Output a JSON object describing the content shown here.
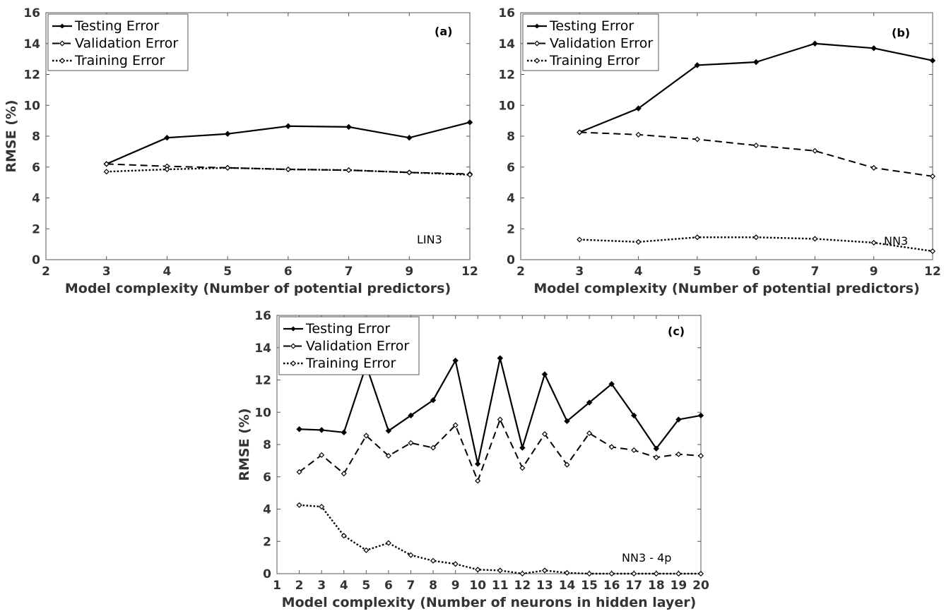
{
  "chart_data": [
    {
      "type": "line",
      "panel": "(a)",
      "annotation": "LIN3",
      "xlabel": "Model complexity (Number of potential predictors)",
      "ylabel": "RMSE (%)",
      "ylim": [
        0,
        16
      ],
      "yticks": [
        0,
        2,
        4,
        6,
        8,
        10,
        12,
        14,
        16
      ],
      "x_tick_labels": [
        "2",
        "3",
        "4",
        "5",
        "6",
        "7",
        "9",
        "12"
      ],
      "categories": [
        "3",
        "4",
        "5",
        "6",
        "7",
        "9",
        "12"
      ],
      "legend_position": "top-left",
      "grid": false,
      "series": [
        {
          "name": "Testing Error",
          "values": [
            6.2,
            7.9,
            8.15,
            8.65,
            8.6,
            7.9,
            8.9
          ]
        },
        {
          "name": "Validation Error",
          "values": [
            6.2,
            6.05,
            5.95,
            5.85,
            5.8,
            5.65,
            5.55
          ]
        },
        {
          "name": "Training Error",
          "values": [
            5.7,
            5.85,
            5.95,
            5.85,
            5.8,
            5.65,
            5.5
          ]
        }
      ]
    },
    {
      "type": "line",
      "panel": "(b)",
      "annotation": "NN3",
      "xlabel": "Model complexity (Number of potential predictors)",
      "ylabel": "",
      "ylim": [
        0,
        16
      ],
      "yticks": [
        0,
        2,
        4,
        6,
        8,
        10,
        12,
        14,
        16
      ],
      "x_tick_labels": [
        "2",
        "3",
        "4",
        "5",
        "6",
        "7",
        "9",
        "12"
      ],
      "categories": [
        "3",
        "4",
        "5",
        "6",
        "7",
        "9",
        "12"
      ],
      "legend_position": "top-left",
      "grid": false,
      "series": [
        {
          "name": "Testing Error",
          "values": [
            8.25,
            9.8,
            12.6,
            12.8,
            14.0,
            13.7,
            12.9
          ]
        },
        {
          "name": "Validation Error",
          "values": [
            8.25,
            8.1,
            7.8,
            7.4,
            7.05,
            5.95,
            5.4
          ]
        },
        {
          "name": "Training Error",
          "values": [
            1.3,
            1.15,
            1.45,
            1.45,
            1.35,
            1.1,
            0.55
          ]
        }
      ]
    },
    {
      "type": "line",
      "panel": "(c)",
      "annotation": "NN3 - 4p",
      "xlabel": "Model complexity (Number of neurons in hidden layer)",
      "ylabel": "RMSE (%)",
      "ylim": [
        0,
        16
      ],
      "xlim": [
        1,
        20
      ],
      "yticks": [
        0,
        2,
        4,
        6,
        8,
        10,
        12,
        14,
        16
      ],
      "x_tick_labels": [
        "1",
        "2",
        "3",
        "4",
        "5",
        "6",
        "7",
        "8",
        "9",
        "10",
        "11",
        "12",
        "13",
        "14",
        "15",
        "16",
        "17",
        "18",
        "19",
        "20"
      ],
      "x": [
        2,
        3,
        4,
        5,
        6,
        7,
        8,
        9,
        10,
        11,
        12,
        13,
        14,
        15,
        16,
        17,
        18,
        19,
        20
      ],
      "legend_position": "top-left",
      "grid": false,
      "series": [
        {
          "name": "Testing Error",
          "values": [
            8.95,
            8.9,
            8.75,
            12.9,
            8.85,
            9.8,
            10.75,
            13.2,
            6.8,
            13.35,
            7.8,
            12.35,
            9.45,
            10.6,
            11.75,
            9.8,
            7.75,
            9.55,
            9.8
          ]
        },
        {
          "name": "Validation Error",
          "values": [
            6.3,
            7.35,
            6.2,
            8.55,
            7.3,
            8.1,
            7.8,
            9.2,
            5.75,
            9.55,
            6.55,
            8.65,
            6.75,
            8.7,
            7.85,
            7.65,
            7.2,
            7.4,
            7.3
          ]
        },
        {
          "name": "Training Error",
          "values": [
            4.25,
            4.15,
            2.35,
            1.45,
            1.9,
            1.15,
            0.8,
            0.6,
            0.25,
            0.2,
            0.0,
            0.2,
            0.05,
            0.0,
            0.0,
            0.0,
            0.0,
            0.0,
            0.0
          ]
        }
      ]
    }
  ]
}
